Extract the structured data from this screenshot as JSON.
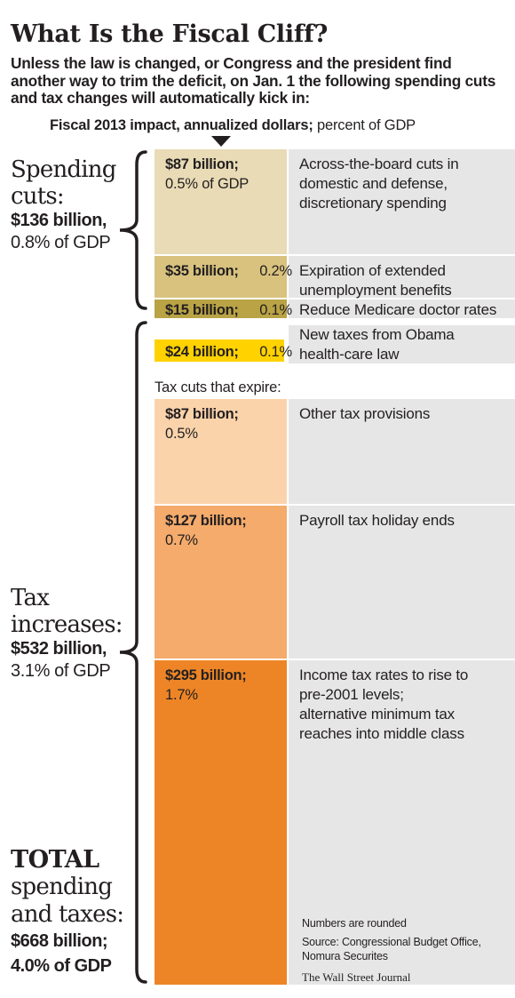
{
  "header": {
    "title": "What Is the Fiscal Cliff?",
    "subtitle": "Unless the law is changed, or Congress and the president find another way to trim the deficit, on Jan. 1 the following spending cuts and tax changes will automatically kick in:",
    "unit_bold": "Fiscal 2013 impact, annualized dollars;",
    "unit_rest": " percent of GDP"
  },
  "groups": {
    "spending": {
      "line1": "Spending",
      "line2": "cuts:",
      "amount": "$136 billion,",
      "pct": "0.8% of GDP"
    },
    "tax": {
      "line1": "Tax",
      "line2": "increases:",
      "amount": "$532 billion,",
      "pct": "3.1% of GDP"
    },
    "total": {
      "line1": "TOTAL",
      "line2": "spending",
      "line3": "and taxes:",
      "amount": "$668 billion;",
      "pct": "4.0% of GDP"
    }
  },
  "chart_data": {
    "type": "bar",
    "title": "What Is the Fiscal Cliff?",
    "unit": "Fiscal 2013 impact, annualized dollars; percent of GDP",
    "stacked": true,
    "subheading": "Tax cuts that expire:",
    "segments": [
      {
        "group": "spending",
        "value": 87,
        "value_label": "$87 billion;",
        "pct_label": "0.5% of GDP",
        "pct_inline": false,
        "description": [
          "Across-the-board cuts in",
          "domestic and defense,",
          "discretionary spending"
        ],
        "color": "#e8dbb5"
      },
      {
        "group": "spending",
        "value": 35,
        "value_label": "$35 billion;",
        "pct_label": "0.2%",
        "pct_inline": true,
        "description": [
          "Expiration of extended",
          "unemployment benefits"
        ],
        "color": "#d8c27e"
      },
      {
        "group": "spending",
        "value": 15,
        "value_label": "$15 billion;",
        "pct_label": "0.1%",
        "pct_inline": true,
        "description": [
          "Reduce Medicare doctor rates"
        ],
        "color": "#b9a345"
      },
      {
        "group": "tax",
        "value": 24,
        "value_label": "$24 billion;",
        "pct_label": "0.1%",
        "pct_inline": true,
        "description": [
          "New taxes from Obama",
          "health-care law"
        ],
        "color": "#ffd200"
      },
      {
        "group": "tax",
        "value": 87,
        "value_label": "$87 billion;",
        "pct_label": "0.5%",
        "pct_inline": false,
        "description": [
          "Other tax provisions"
        ],
        "color": "#fbd3ab"
      },
      {
        "group": "tax",
        "value": 127,
        "value_label": "$127 billion;",
        "pct_label": "0.7%",
        "pct_inline": false,
        "description": [
          "Payroll tax holiday ends"
        ],
        "color": "#f4ab6b"
      },
      {
        "group": "tax",
        "value": 295,
        "value_label": "$295 billion;",
        "pct_label": "1.7%",
        "pct_inline": false,
        "description": [
          "Income tax rates to rise to",
          "pre-2001 levels;",
          "alternative minimum tax",
          "reaches into middle class"
        ],
        "color": "#ed8526"
      }
    ],
    "gray_color": "#e6e6e7"
  },
  "notes": {
    "rounded": "Numbers are rounded",
    "source": "Source: Congressional Budget Office, Nomura Securites",
    "credit": "The Wall Street Journal"
  }
}
